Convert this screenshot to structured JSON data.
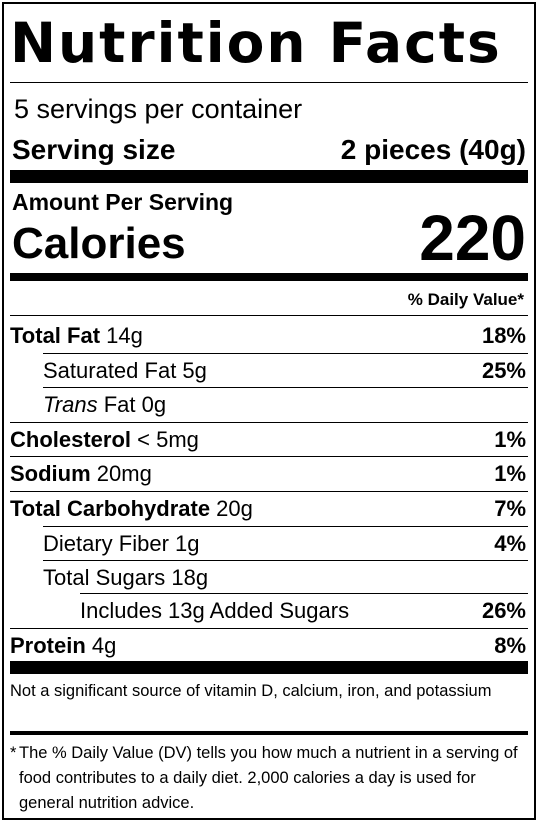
{
  "title": "Nutrition Facts",
  "servings_per_container": "5 servings per container",
  "serving_size_label": "Serving size",
  "serving_size_value": "2 pieces (40g)",
  "amount_per_serving": "Amount Per Serving",
  "calories_label": "Calories",
  "calories_value": "220",
  "daily_value_header": "% Daily Value*",
  "nutrients": [
    {
      "bold": "Total Fat",
      "name": "",
      "amount": " 14g",
      "dv": "18%"
    },
    {
      "bold": "",
      "name": "Saturated Fat",
      "amount": " 5g",
      "dv": "25%"
    },
    {
      "italic": "Trans",
      "name": " Fat",
      "amount": " 0g",
      "dv": ""
    },
    {
      "bold": "Cholesterol",
      "name": "",
      "amount": " < 5mg",
      "dv": "1%"
    },
    {
      "bold": "Sodium",
      "name": "",
      "amount": " 20mg",
      "dv": "1%"
    },
    {
      "bold": "Total Carbohydrate",
      "name": "",
      "amount": " 20g",
      "dv": "7%"
    },
    {
      "bold": "",
      "name": "Dietary Fiber",
      "amount": " 1g",
      "dv": "4%"
    },
    {
      "bold": "",
      "name": "Total Sugars",
      "amount": " 18g",
      "dv": ""
    },
    {
      "bold": "",
      "name": "Includes 13g Added Sugars",
      "amount": "",
      "dv": "26%"
    },
    {
      "bold": "Protein",
      "name": "",
      "amount": " 4g",
      "dv": "8%"
    }
  ],
  "note": "Not a significant source of vitamin D, calcium, iron, and potassium",
  "footnote_star": "*",
  "footnote": "The % Daily Value (DV) tells you how much a nutrient in a serving of food contributes to a daily diet. 2,000 calories a day is used for general nutrition advice."
}
